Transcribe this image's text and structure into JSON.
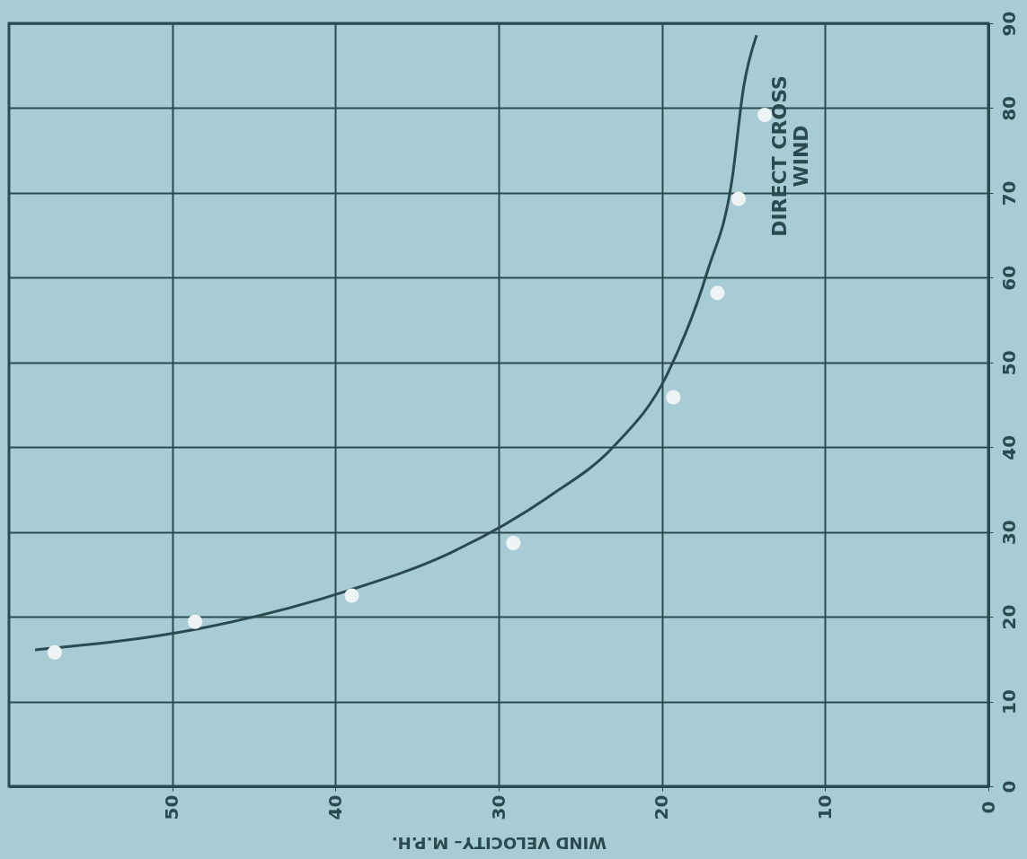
{
  "chart_data": {
    "type": "line",
    "xlabel": "WIND VELOCITY– M.P.H.",
    "xlim": [
      60,
      0
    ],
    "xticks": [
      0,
      10,
      20,
      30,
      40,
      50
    ],
    "ylim": [
      0,
      90
    ],
    "yticks": [
      0,
      10,
      20,
      30,
      40,
      50,
      60,
      70,
      80,
      90
    ],
    "grid": true,
    "annotations": [
      "DIRECT CROSS\nWIND"
    ],
    "series": [
      {
        "color": "#2b4a50",
        "x": [
          58.4,
          48.6,
          39.2,
          33.0,
          26.9,
          23.0,
          19.7,
          17.2,
          15.7,
          15.0,
          14.2
        ],
        "values": [
          16.1,
          18.5,
          23.1,
          27.5,
          34.2,
          40.0,
          48.5,
          60.8,
          71.6,
          82.4,
          88.6
        ]
      },
      {
        "type": "scatter",
        "color": "#eef3f4",
        "x": [
          57.2,
          48.6,
          39.0,
          29.1,
          19.3,
          16.6,
          15.3,
          13.7
        ],
        "values": [
          15.8,
          19.4,
          22.5,
          28.7,
          45.9,
          58.2,
          69.3,
          79.2
        ]
      }
    ]
  }
}
